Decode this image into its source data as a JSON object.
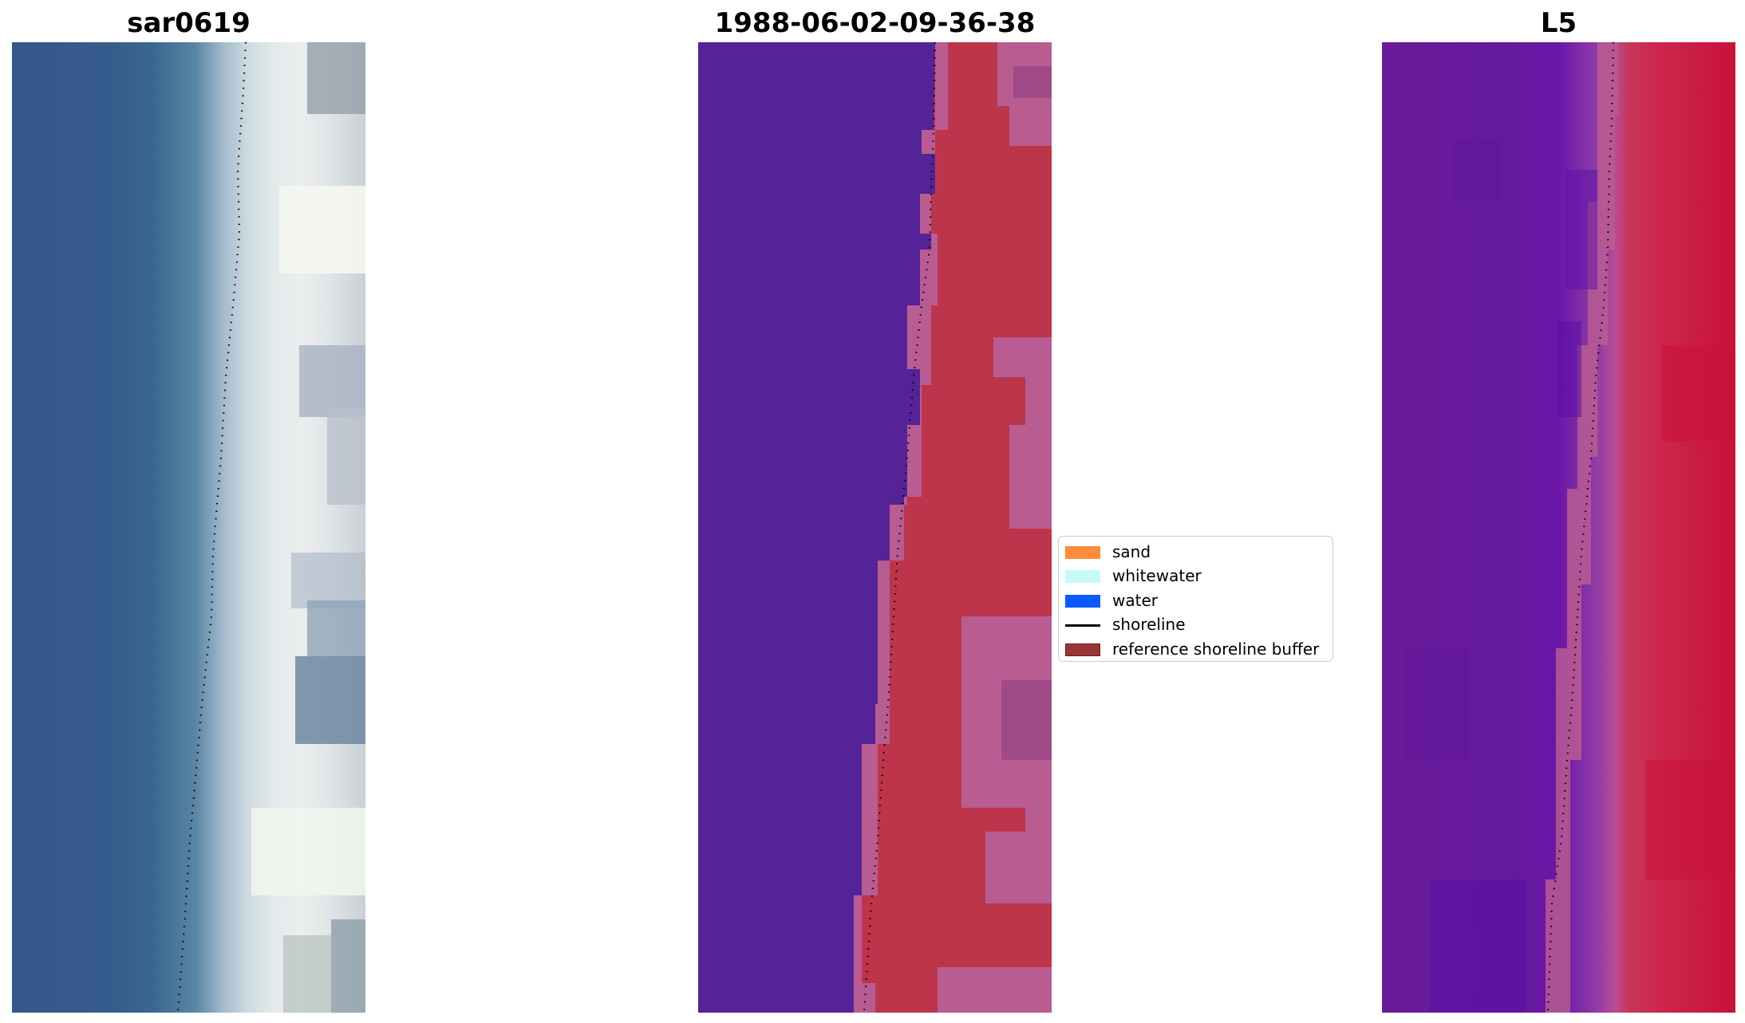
{
  "titles": {
    "left": "sar0619",
    "center": "1988-06-02-09-36-38",
    "right": "L5"
  },
  "legend": {
    "items": [
      {
        "label": "sand",
        "color": "#ff8c3c",
        "kind": "patch"
      },
      {
        "label": "whitewater",
        "color": "#c8fafa",
        "kind": "patch"
      },
      {
        "label": "water",
        "color": "#0a5aff",
        "kind": "patch"
      },
      {
        "label": "shoreline",
        "color": "#000000",
        "kind": "line"
      },
      {
        "label": "reference shoreline buffer",
        "color": "#9b3535",
        "kind": "patch",
        "edge": "#6a1f1f"
      }
    ]
  },
  "colors": {
    "class_water": "#552398",
    "class_land": "#bd354a",
    "class_buffer": "#b85c92",
    "shoreline": "#000000"
  }
}
